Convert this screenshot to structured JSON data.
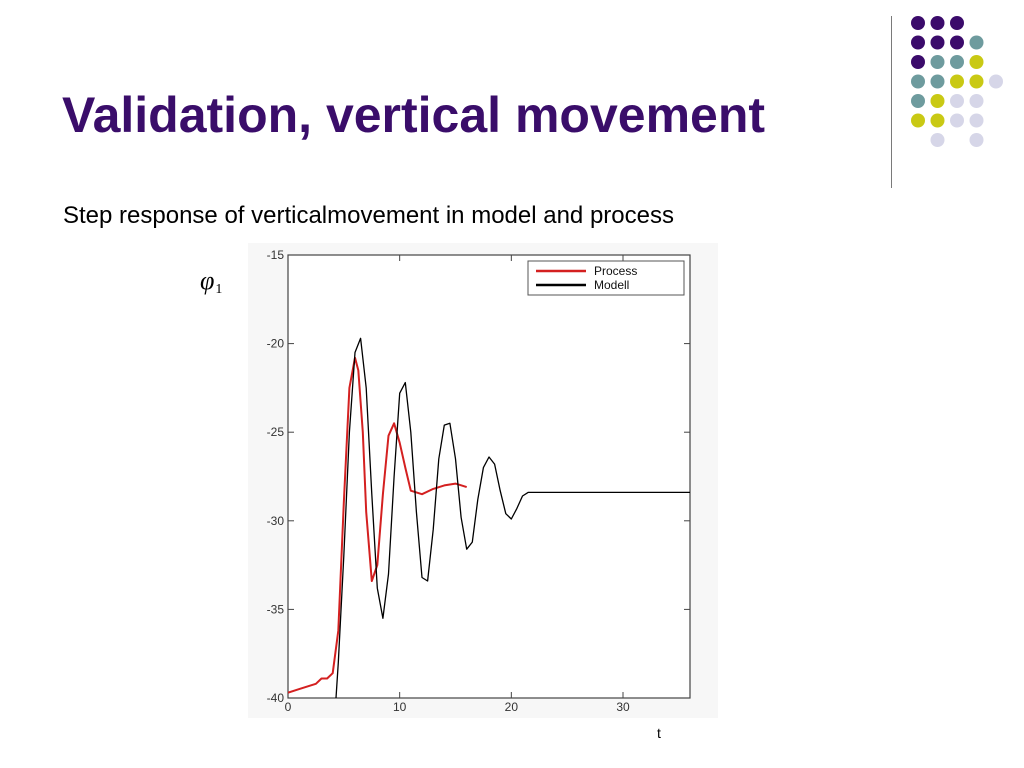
{
  "slide": {
    "title": "Validation, vertical movement",
    "subtitle": "Step response of verticalmovement in model and process"
  },
  "decoration": {
    "colors": {
      "purple": "#3b0b6b",
      "teal": "#6e9b9e",
      "olive": "#c9c914",
      "lavender": "#d6d6e8"
    },
    "dot_grid": [
      [
        "purple",
        "purple",
        "purple",
        "",
        ""
      ],
      [
        "purple",
        "purple",
        "purple",
        "teal",
        ""
      ],
      [
        "purple",
        "teal",
        "teal",
        "olive",
        ""
      ],
      [
        "teal",
        "teal",
        "olive",
        "olive",
        "lavender"
      ],
      [
        "teal",
        "olive",
        "lavender",
        "lavender",
        ""
      ],
      [
        "olive",
        "olive",
        "lavender",
        "lavender",
        ""
      ],
      [
        "",
        "lavender",
        "",
        "lavender",
        ""
      ]
    ]
  },
  "chart_data": {
    "type": "line",
    "title": "",
    "xlabel": "t",
    "ylabel_symbol": "φ",
    "ylabel_subscript": "1",
    "xlim": [
      0,
      36
    ],
    "ylim": [
      -40,
      -15
    ],
    "xticks": [
      0,
      10,
      20,
      30
    ],
    "yticks": [
      -15,
      -20,
      -25,
      -30,
      -35,
      -40
    ],
    "grid": false,
    "legend_position": "top-right",
    "series": [
      {
        "name": "Process",
        "color": "#d42020",
        "x": [
          0,
          1,
          2,
          2.5,
          3,
          3.5,
          4,
          4.5,
          5,
          5.5,
          6,
          6.3,
          6.7,
          7,
          7.5,
          8,
          8.5,
          9,
          9.5,
          10,
          10.5,
          11,
          12,
          13,
          14,
          15,
          16
        ],
        "y": [
          -39.7,
          -39.5,
          -39.3,
          -39.2,
          -38.9,
          -38.9,
          -38.6,
          -36.2,
          -29,
          -22.5,
          -20.8,
          -21.5,
          -25,
          -29.5,
          -33.4,
          -32.5,
          -28.5,
          -25.2,
          -24.5,
          -25.6,
          -27,
          -28.3,
          -28.5,
          -28.2,
          -28,
          -27.9,
          -28.1
        ]
      },
      {
        "name": "Modell",
        "color": "#000000",
        "x": [
          4.3,
          4.5,
          5,
          5.5,
          6,
          6.5,
          7,
          7.5,
          8,
          8.5,
          9,
          9.5,
          10,
          10.5,
          11,
          11.5,
          12,
          12.5,
          13,
          13.5,
          14,
          14.5,
          15,
          15.5,
          16,
          16.5,
          17,
          17.5,
          18,
          18.5,
          19,
          19.5,
          20,
          20.5,
          21,
          21.5,
          22,
          23,
          26,
          30,
          36
        ],
        "y": [
          -40,
          -38,
          -32,
          -25,
          -20.5,
          -19.7,
          -22.5,
          -28.5,
          -33.8,
          -35.5,
          -33,
          -27.5,
          -22.8,
          -22.2,
          -25,
          -29.5,
          -33.2,
          -33.4,
          -30.5,
          -26.5,
          -24.6,
          -24.5,
          -26.5,
          -29.8,
          -31.6,
          -31.2,
          -28.8,
          -27,
          -26.4,
          -26.8,
          -28.3,
          -29.6,
          -29.9,
          -29.3,
          -28.6,
          -28.4,
          -28.4,
          -28.4,
          -28.4,
          -28.4,
          -28.4
        ]
      }
    ]
  }
}
